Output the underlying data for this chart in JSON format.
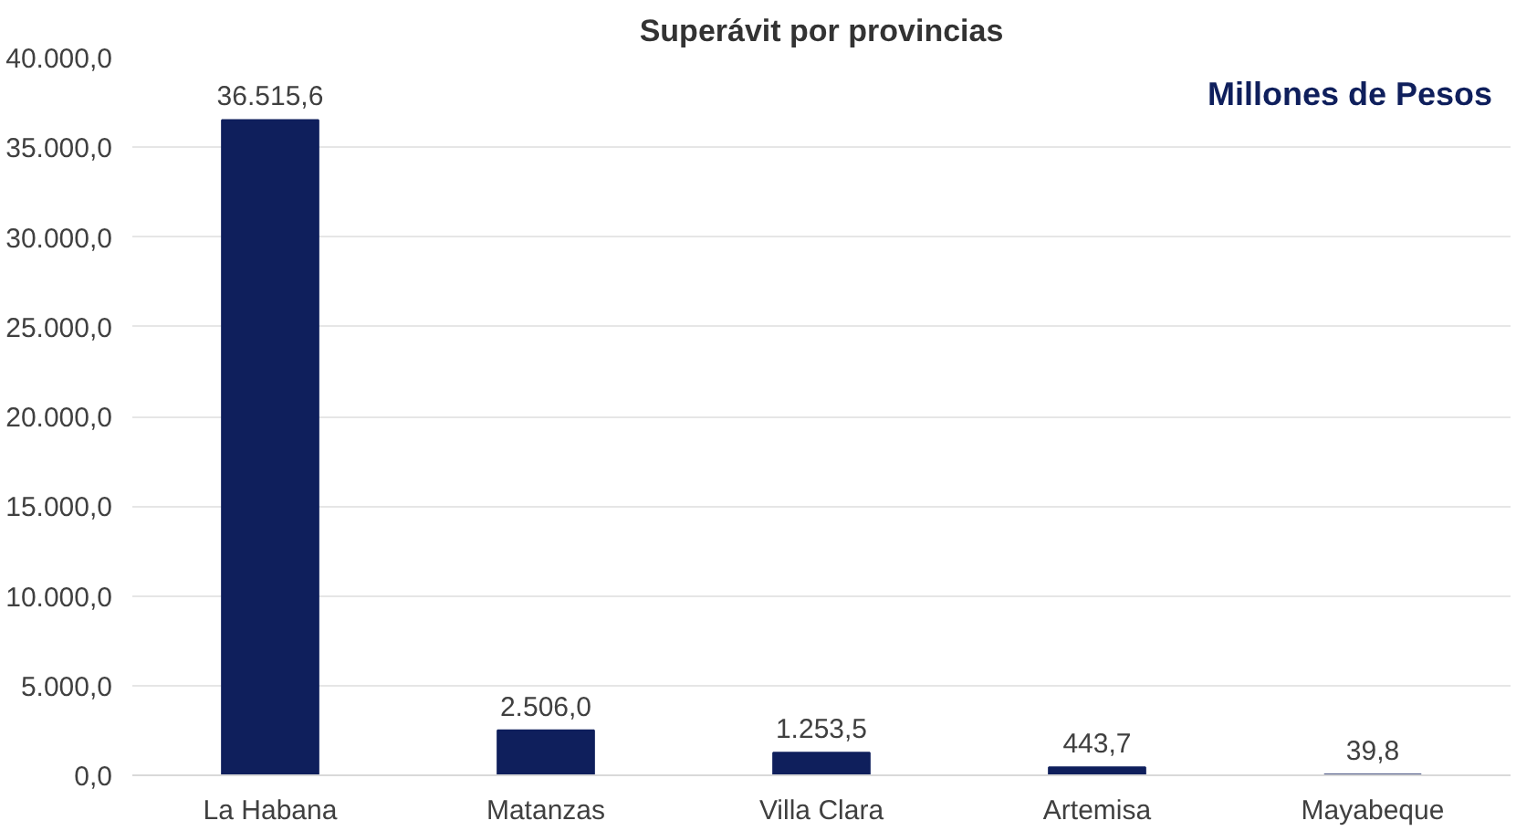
{
  "chart_data": {
    "type": "bar",
    "title": "Superávit por provincias",
    "annotations": [
      "Millones de Pesos"
    ],
    "categories": [
      "La Habana",
      "Matanzas",
      "Villa Clara",
      "Artemisa",
      "Mayabeque"
    ],
    "values": [
      36515.6,
      2506.0,
      1253.5,
      443.7,
      39.8
    ],
    "value_labels": [
      "36.515,6",
      "2.506,0",
      "1.253,5",
      "443,7",
      "39,8"
    ],
    "color": "#0f1f5c",
    "ylim": [
      0,
      40000
    ],
    "yticks": [
      {
        "value": 0,
        "label": "0,0"
      },
      {
        "value": 5000,
        "label": "5.000,0"
      },
      {
        "value": 10000,
        "label": "10.000,0"
      },
      {
        "value": 15000,
        "label": "15.000,0"
      },
      {
        "value": 20000,
        "label": "20.000,0"
      },
      {
        "value": 25000,
        "label": "25.000,0"
      },
      {
        "value": 30000,
        "label": "30.000,0"
      },
      {
        "value": 35000,
        "label": "35.000,0"
      },
      {
        "value": 40000,
        "label": "40.000,0"
      }
    ],
    "grid": "y"
  }
}
